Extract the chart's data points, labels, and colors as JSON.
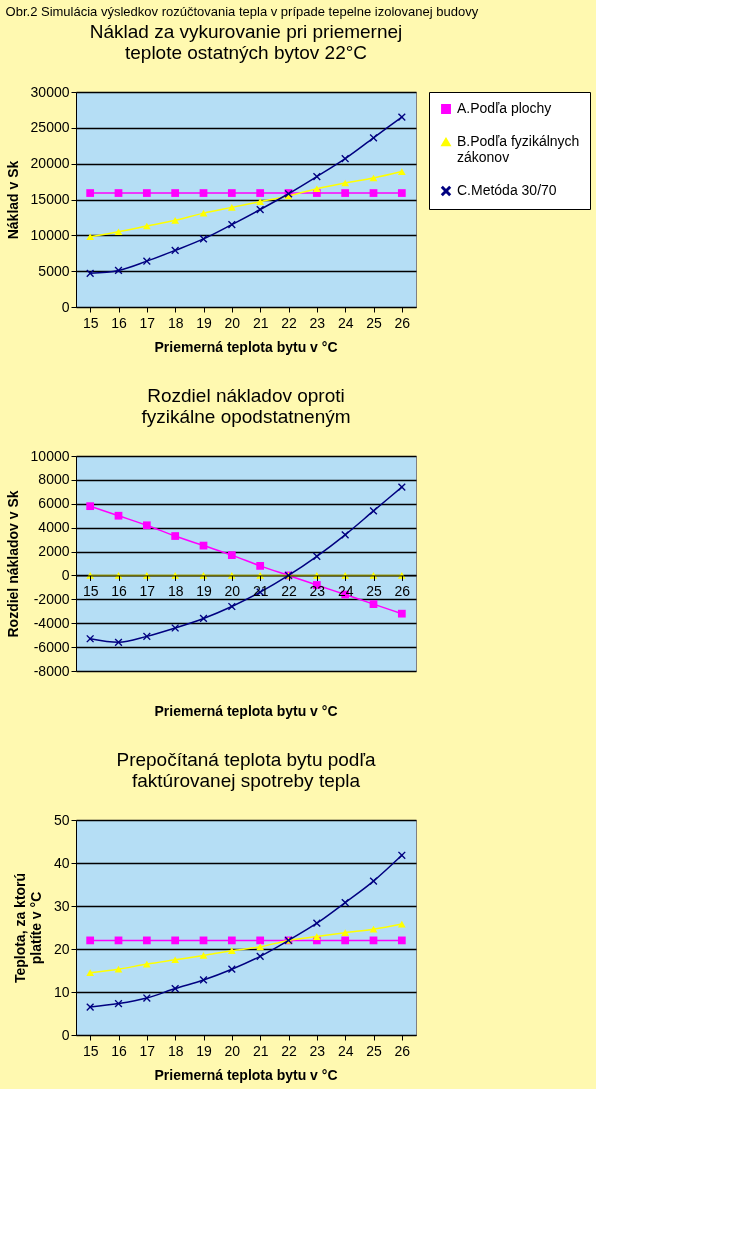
{
  "chart_data": [
    {
      "type": "line",
      "title": "Náklad za vykurovanie pri priemernej teplote ostatných bytov 22°C",
      "annotations": [
        "Obr.2 Simulácia výsledkov rozúčtovania tepla v prípade tepelne izolovanej budovy"
      ],
      "xlabel": "Priemerná teplota bytu v °C",
      "ylabel": "Náklad v Sk",
      "categories": [
        "15",
        "16",
        "17",
        "18",
        "19",
        "20",
        "21",
        "22",
        "23",
        "24",
        "25",
        "26"
      ],
      "ylim": [
        0,
        30000
      ],
      "yticks": [
        0,
        5000,
        10000,
        15000,
        20000,
        25000,
        30000
      ],
      "grid": "y",
      "legend": "right",
      "series": [
        {
          "name": "A.Podľa plochy",
          "color": "#ff00ff",
          "marker": "square",
          "values": [
            15900,
            15900,
            15900,
            15900,
            15900,
            15900,
            15900,
            15900,
            15900,
            15900,
            15900,
            15900
          ]
        },
        {
          "name": "B.Podľa fyzikálnych zákonov",
          "color": "#ffff00",
          "marker": "triangle",
          "values": [
            9800,
            10500,
            11300,
            12100,
            13100,
            13900,
            14700,
            15500,
            16500,
            17300,
            18000,
            18900
          ]
        },
        {
          "name": "C.Metóda 30/70",
          "color": "#000080",
          "marker": "cross",
          "values": [
            4700,
            5100,
            6400,
            7900,
            9500,
            11500,
            13600,
            15800,
            18200,
            20700,
            23600,
            26500
          ]
        }
      ]
    },
    {
      "type": "line",
      "title": "Rozdiel nákladov oproti fyzikálne opodstatneným",
      "xlabel": "Priemerná teplota bytu v °C",
      "ylabel": "Rozdiel nákladov v Sk",
      "categories": [
        "15",
        "16",
        "17",
        "18",
        "19",
        "20",
        "21",
        "22",
        "23",
        "24",
        "25",
        "26"
      ],
      "ylim": [
        -8000,
        10000
      ],
      "yticks": [
        -8000,
        -6000,
        -4000,
        -2000,
        0,
        2000,
        4000,
        6000,
        8000,
        10000
      ],
      "grid": "y",
      "legend": "right",
      "series": [
        {
          "name": "A.Podľa plochy",
          "color": "#ff00ff",
          "marker": "square",
          "values": [
            5800,
            5000,
            4200,
            3300,
            2500,
            1700,
            800,
            0,
            -800,
            -1600,
            -2400,
            -3200
          ]
        },
        {
          "name": "B.Podľa fyzikálnych zákonov",
          "color": "#ffff00",
          "marker": "triangle",
          "values": [
            0,
            0,
            0,
            0,
            0,
            0,
            0,
            0,
            0,
            0,
            0,
            0
          ]
        },
        {
          "name": "C.Metóda 30/70",
          "color": "#000080",
          "marker": "cross",
          "values": [
            -5300,
            -5600,
            -5100,
            -4400,
            -3600,
            -2600,
            -1400,
            0,
            1600,
            3400,
            5400,
            7400
          ]
        }
      ]
    },
    {
      "type": "line",
      "title": "Prepočítaná teplota bytu podľa faktúrovanej spotreby tepla",
      "xlabel": "Priemerná teplota bytu v °C",
      "ylabel": "Teplota, za ktorú platíte v °C",
      "categories": [
        "15",
        "16",
        "17",
        "18",
        "19",
        "20",
        "21",
        "22",
        "23",
        "24",
        "25",
        "26"
      ],
      "ylim": [
        0,
        50
      ],
      "yticks": [
        0,
        10,
        20,
        30,
        40,
        50
      ],
      "grid": "y",
      "legend": "right",
      "series": [
        {
          "name": "A.Podľa plochy",
          "color": "#ff00ff",
          "marker": "square",
          "values": [
            22,
            22,
            22,
            22,
            22,
            22,
            22,
            22,
            22,
            22,
            22,
            22
          ]
        },
        {
          "name": "B.Podľa fyzikálnych zákonov",
          "color": "#ffff00",
          "marker": "triangle",
          "values": [
            14.5,
            15.3,
            16.5,
            17.5,
            18.5,
            19.6,
            20.5,
            22,
            22.9,
            23.8,
            24.6,
            25.8
          ]
        },
        {
          "name": "C.Metóda 30/70",
          "color": "#000080",
          "marker": "cross",
          "values": [
            6.5,
            7.3,
            8.6,
            10.8,
            12.8,
            15.3,
            18.3,
            22,
            26,
            30.8,
            35.8,
            41.8
          ]
        }
      ]
    }
  ]
}
